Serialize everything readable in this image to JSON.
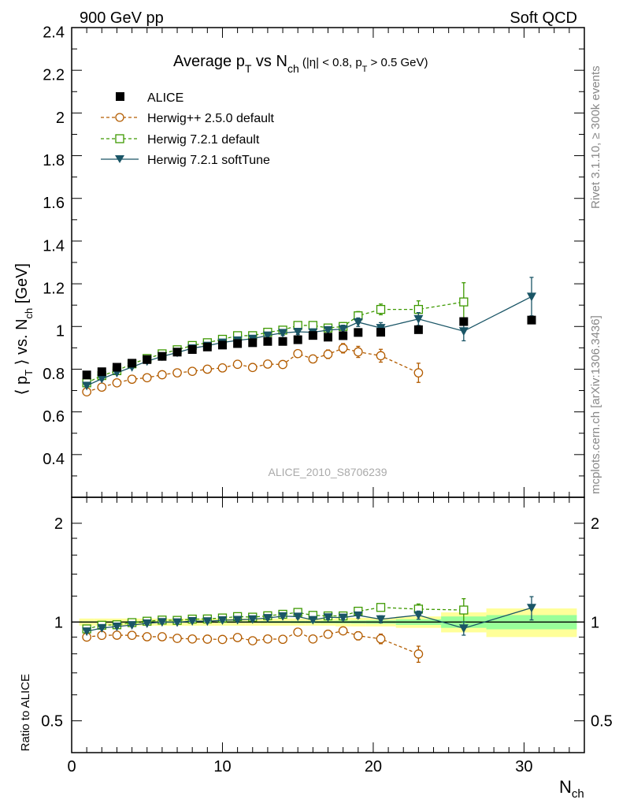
{
  "header": {
    "left": "900 GeV pp",
    "right": "Soft QCD"
  },
  "side_labels": {
    "rivet": "Rivet 3.1.10, ≥ 300k events",
    "mcplots": "mcplots.cern.ch [arXiv:1306.3436]"
  },
  "title": {
    "p1": "Average p",
    "p1_sub": "T",
    "p2": " vs N",
    "p2_sub": "ch",
    "p3": " (|η| < 0.8, p",
    "p3_sub": "T",
    "p4": " > 0.5 GeV)"
  },
  "watermark": "ALICE_2010_S8706239",
  "ylabel": {
    "a": "⟨ p",
    "a_sub": "T",
    "b": " ⟩ vs. N",
    "b_sub": "ch",
    "c": " [GeV]"
  },
  "ratio_ylabel": "Ratio to ALICE",
  "xlabel": {
    "main": "N",
    "sub": "ch"
  },
  "colors": {
    "alice": "#000000",
    "herwigpp": "#b35c00",
    "h721": "#3d9900",
    "soft": "#1a5566",
    "band_yellow": "#ffff99",
    "band_green": "#99ff99"
  },
  "chart_data": [
    {
      "type": "scatter",
      "panel": "main",
      "xlim": [
        0,
        34
      ],
      "ylim": [
        0.22,
        2.42
      ],
      "yticks": [
        0.4,
        0.6,
        0.8,
        1,
        1.2,
        1.4,
        1.6,
        1.8,
        2,
        2.2,
        2.4
      ],
      "ytick_labels": [
        "0.4",
        "0.6",
        "0.8",
        "1",
        "1.2",
        "1.4",
        "1.6",
        "1.8",
        "2",
        "2.2",
        "2.4"
      ],
      "legend": [
        "ALICE",
        "Herwig++ 2.5.0 default",
        "Herwig 7.2.1 default",
        "Herwig 7.2.1 softTune"
      ],
      "series": [
        {
          "name": "ALICE",
          "marker": "filled-square",
          "x": [
            1,
            2,
            3,
            4,
            5,
            6,
            7,
            8,
            9,
            10,
            11,
            12,
            13,
            14,
            15,
            16,
            17,
            18,
            19,
            20.5,
            23,
            26,
            30.5
          ],
          "y": [
            0.793,
            0.808,
            0.829,
            0.848,
            0.865,
            0.88,
            0.9,
            0.912,
            0.924,
            0.933,
            0.94,
            0.944,
            0.95,
            0.95,
            0.958,
            0.978,
            0.97,
            0.977,
            0.992,
            0.993,
            1.005,
            1.043,
            1.05
          ]
        },
        {
          "name": "Herwig++ 2.5.0 default",
          "marker": "open-circle",
          "line": "dashed",
          "x": [
            1,
            2,
            3,
            4,
            5,
            6,
            7,
            8,
            9,
            10,
            11,
            12,
            13,
            14,
            15,
            16,
            17,
            18,
            19,
            20.5,
            23
          ],
          "y": [
            0.714,
            0.736,
            0.756,
            0.773,
            0.78,
            0.794,
            0.803,
            0.81,
            0.82,
            0.826,
            0.843,
            0.828,
            0.844,
            0.842,
            0.893,
            0.868,
            0.89,
            0.918,
            0.901,
            0.883,
            0.803
          ],
          "err": [
            0.01,
            0.01,
            0.01,
            0.01,
            0.01,
            0.01,
            0.01,
            0.01,
            0.01,
            0.01,
            0.012,
            0.012,
            0.012,
            0.014,
            0.016,
            0.018,
            0.02,
            0.022,
            0.026,
            0.03,
            0.045
          ]
        },
        {
          "name": "Herwig 7.2.1 default",
          "marker": "open-square",
          "line": "dashed",
          "x": [
            1,
            2,
            3,
            4,
            5,
            6,
            7,
            8,
            9,
            10,
            11,
            12,
            13,
            14,
            15,
            16,
            17,
            18,
            19,
            20.5,
            23,
            26
          ],
          "y": [
            0.756,
            0.79,
            0.813,
            0.845,
            0.87,
            0.892,
            0.911,
            0.931,
            0.944,
            0.96,
            0.977,
            0.977,
            0.993,
            1.003,
            1.025,
            1.025,
            1.013,
            1.02,
            1.07,
            1.1,
            1.1,
            1.135
          ],
          "err": [
            0.006,
            0.006,
            0.006,
            0.006,
            0.006,
            0.006,
            0.006,
            0.007,
            0.008,
            0.009,
            0.01,
            0.01,
            0.011,
            0.012,
            0.013,
            0.015,
            0.016,
            0.018,
            0.02,
            0.025,
            0.04,
            0.09
          ]
        },
        {
          "name": "Herwig 7.2.1 softTune",
          "marker": "filled-triangle-down",
          "line": "solid",
          "x": [
            1,
            2,
            3,
            4,
            5,
            6,
            7,
            8,
            9,
            10,
            11,
            12,
            13,
            14,
            15,
            16,
            17,
            18,
            19,
            20.5,
            23,
            26,
            30.5
          ],
          "y": [
            0.743,
            0.775,
            0.803,
            0.83,
            0.857,
            0.88,
            0.898,
            0.918,
            0.93,
            0.945,
            0.955,
            0.963,
            0.978,
            0.99,
            0.995,
            0.993,
            1.003,
            1.008,
            1.04,
            1.013,
            1.055,
            0.998,
            1.16
          ],
          "err": [
            0.006,
            0.006,
            0.006,
            0.006,
            0.006,
            0.006,
            0.006,
            0.007,
            0.008,
            0.009,
            0.01,
            0.01,
            0.011,
            0.012,
            0.013,
            0.015,
            0.016,
            0.018,
            0.02,
            0.025,
            0.03,
            0.045,
            0.09
          ]
        }
      ]
    },
    {
      "type": "scatter",
      "panel": "ratio",
      "xlim": [
        0,
        34
      ],
      "ylim": [
        0.4,
        2.4
      ],
      "yscale": "log",
      "yticks": [
        0.5,
        1,
        2
      ],
      "ytick_labels": [
        "0.5",
        "1",
        "2"
      ],
      "xticks": [
        0,
        10,
        20,
        30
      ],
      "xtick_labels": [
        "0",
        "10",
        "20",
        "30"
      ],
      "bands": {
        "edges": [
          0.5,
          1.5,
          2.5,
          3.5,
          4.5,
          5.5,
          6.5,
          7.5,
          8.5,
          9.5,
          10.5,
          11.5,
          12.5,
          13.5,
          14.5,
          15.5,
          16.5,
          17.5,
          18.5,
          19.5,
          21.5,
          24.5,
          27.5,
          33.5
        ],
        "stat": [
          0.005,
          0.005,
          0.005,
          0.005,
          0.005,
          0.005,
          0.005,
          0.005,
          0.005,
          0.006,
          0.006,
          0.006,
          0.007,
          0.007,
          0.008,
          0.008,
          0.009,
          0.01,
          0.011,
          0.012,
          0.02,
          0.04,
          0.05
        ],
        "total": [
          0.025,
          0.025,
          0.025,
          0.025,
          0.025,
          0.025,
          0.025,
          0.025,
          0.025,
          0.025,
          0.025,
          0.025,
          0.025,
          0.025,
          0.025,
          0.025,
          0.025,
          0.03,
          0.03,
          0.03,
          0.04,
          0.07,
          0.1
        ]
      },
      "series": [
        {
          "name": "Herwig++ 2.5.0 default",
          "x": [
            1,
            2,
            3,
            4,
            5,
            6,
            7,
            8,
            9,
            10,
            11,
            12,
            13,
            14,
            15,
            16,
            17,
            18,
            19,
            20.5,
            23
          ],
          "y": [
            0.9,
            0.911,
            0.912,
            0.911,
            0.902,
            0.902,
            0.892,
            0.888,
            0.887,
            0.885,
            0.897,
            0.877,
            0.888,
            0.886,
            0.932,
            0.888,
            0.918,
            0.94,
            0.908,
            0.889,
            0.799
          ],
          "err": [
            0.013,
            0.012,
            0.012,
            0.012,
            0.012,
            0.011,
            0.011,
            0.011,
            0.011,
            0.011,
            0.013,
            0.013,
            0.013,
            0.015,
            0.017,
            0.018,
            0.021,
            0.023,
            0.026,
            0.03,
            0.045
          ]
        },
        {
          "name": "Herwig 7.2.1 default",
          "x": [
            1,
            2,
            3,
            4,
            5,
            6,
            7,
            8,
            9,
            10,
            11,
            12,
            13,
            14,
            15,
            16,
            17,
            18,
            19,
            20.5,
            23,
            26
          ],
          "y": [
            0.953,
            0.978,
            0.981,
            0.996,
            1.006,
            1.014,
            1.012,
            1.021,
            1.022,
            1.029,
            1.039,
            1.035,
            1.045,
            1.056,
            1.07,
            1.048,
            1.044,
            1.044,
            1.079,
            1.108,
            1.095,
            1.088
          ],
          "err": [
            0.008,
            0.007,
            0.007,
            0.007,
            0.007,
            0.007,
            0.007,
            0.008,
            0.009,
            0.01,
            0.011,
            0.011,
            0.012,
            0.013,
            0.014,
            0.015,
            0.016,
            0.018,
            0.02,
            0.025,
            0.04,
            0.09
          ]
        },
        {
          "name": "Herwig 7.2.1 softTune",
          "x": [
            1,
            2,
            3,
            4,
            5,
            6,
            7,
            8,
            9,
            10,
            11,
            12,
            13,
            14,
            15,
            16,
            17,
            18,
            19,
            20.5,
            23,
            26,
            30.5
          ],
          "y": [
            0.937,
            0.959,
            0.969,
            0.979,
            0.991,
            1.0,
            0.998,
            1.007,
            1.006,
            1.013,
            1.016,
            1.02,
            1.029,
            1.042,
            1.039,
            1.015,
            1.034,
            1.032,
            1.048,
            1.02,
            1.05,
            0.957,
            1.105
          ],
          "err": [
            0.008,
            0.007,
            0.007,
            0.007,
            0.007,
            0.007,
            0.007,
            0.008,
            0.009,
            0.01,
            0.011,
            0.011,
            0.012,
            0.013,
            0.014,
            0.015,
            0.016,
            0.018,
            0.02,
            0.025,
            0.03,
            0.045,
            0.09
          ]
        }
      ]
    }
  ]
}
